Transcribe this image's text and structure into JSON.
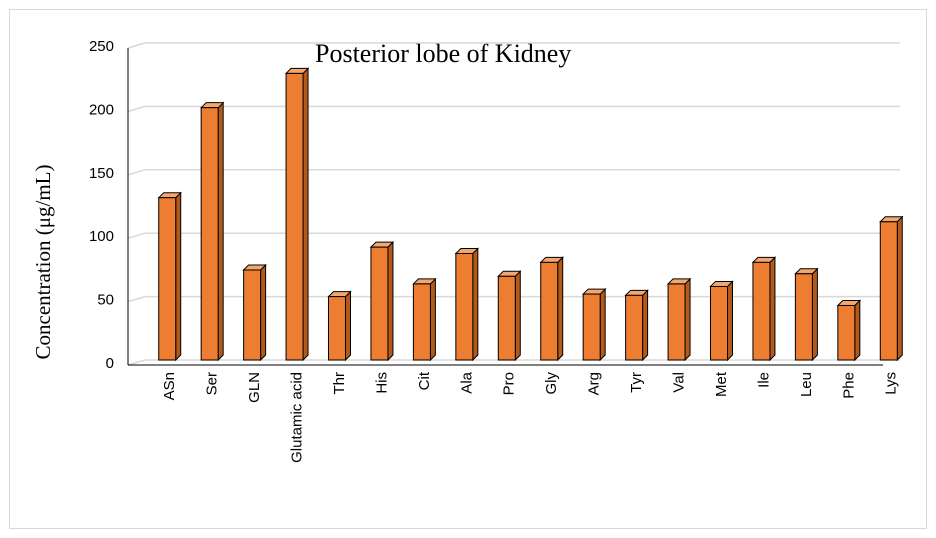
{
  "chart_data": {
    "type": "bar3d",
    "title": "Posterior lobe of Kidney",
    "y_label": "Concentration (μg/mL)",
    "categories": [
      "ASn",
      "Ser",
      "GLN",
      "Glutamic acid",
      "Thr",
      "His",
      "Cit",
      "Ala",
      "Pro",
      "Gly",
      "Arg",
      "Tyr",
      "Val",
      "Met",
      "Ile",
      "Leu",
      "Phe",
      "Lys"
    ],
    "values": [
      128,
      199,
      71,
      226,
      50,
      89,
      60,
      84,
      66,
      77,
      52,
      51,
      60,
      58,
      77,
      68,
      43,
      109
    ],
    "color": "#ed7d31",
    "ylim": [
      0,
      250
    ],
    "yticks": [
      0,
      50,
      100,
      150,
      200,
      250
    ],
    "grid": true
  }
}
